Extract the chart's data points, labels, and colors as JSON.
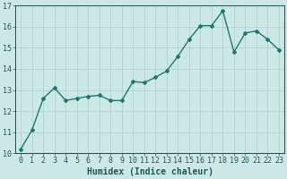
{
  "x": [
    0,
    1,
    2,
    3,
    4,
    5,
    6,
    7,
    8,
    9,
    10,
    11,
    12,
    13,
    14,
    15,
    16,
    17,
    18,
    19,
    20,
    21,
    22,
    23
  ],
  "y": [
    10.2,
    11.1,
    12.6,
    13.1,
    12.5,
    12.6,
    12.7,
    12.75,
    12.5,
    12.5,
    13.4,
    13.35,
    13.6,
    13.9,
    14.6,
    15.4,
    16.05,
    16.05,
    16.75,
    14.8,
    15.7,
    15.8,
    15.4,
    14.9
  ],
  "xlabel": "Humidex (Indice chaleur)",
  "ylim": [
    10,
    17
  ],
  "xlim_min": -0.5,
  "xlim_max": 23.5,
  "yticks": [
    10,
    11,
    12,
    13,
    14,
    15,
    16,
    17
  ],
  "xticks": [
    0,
    1,
    2,
    3,
    4,
    5,
    6,
    7,
    8,
    9,
    10,
    11,
    12,
    13,
    14,
    15,
    16,
    17,
    18,
    19,
    20,
    21,
    22,
    23
  ],
  "line_color": "#1a7a6e",
  "marker": "D",
  "marker_size": 2.0,
  "bg_color": "#cce8e6",
  "grid_color": "#aacfcc",
  "xlabel_fontsize": 7,
  "tick_fontsize": 6,
  "line_width": 1.0,
  "title": ""
}
